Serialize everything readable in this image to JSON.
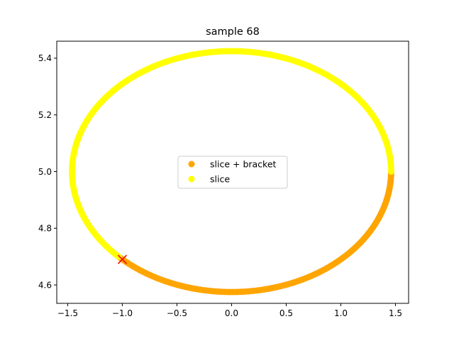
{
  "chart_data": {
    "type": "scatter",
    "title": "sample 68",
    "xlabel": "",
    "ylabel": "",
    "xlim": [
      -1.6,
      1.62
    ],
    "ylim": [
      4.535,
      5.46
    ],
    "xticks": [
      -1.5,
      -1.0,
      -0.5,
      0.0,
      0.5,
      1.0,
      1.5
    ],
    "xtick_labels": [
      "−1.5",
      "−1.0",
      "−0.5",
      "0.0",
      "0.5",
      "1.0",
      "1.5"
    ],
    "yticks": [
      4.6,
      4.8,
      5.0,
      5.2,
      5.4
    ],
    "ytick_labels": [
      "4.6",
      "4.8",
      "5.0",
      "5.2",
      "5.4"
    ],
    "grid": false,
    "legend": {
      "placement": "center"
    },
    "ellipse": {
      "center": [
        0.0,
        5.0
      ],
      "rx": 1.46,
      "ry": 0.425
    },
    "series": [
      {
        "name": "slice + bracket",
        "color": "#ffa500",
        "theta_range_deg": [
          225,
          360
        ],
        "n_points": 140
      },
      {
        "name": "slice",
        "color": "#ffff00",
        "theta_range_deg": [
          0,
          225
        ],
        "n_points": 240
      }
    ],
    "marker": {
      "symbol": "x",
      "color": "#ff0000",
      "point": [
        -1.0,
        4.69
      ]
    }
  }
}
